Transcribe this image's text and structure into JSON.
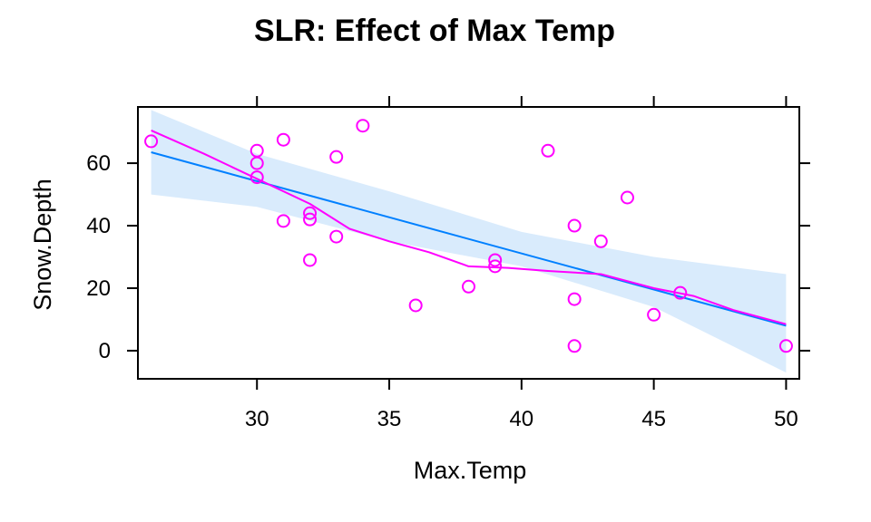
{
  "chart_data": {
    "type": "scatter",
    "title": "SLR: Effect of Max Temp",
    "xlabel": "Max.Temp",
    "ylabel": "Snow.Depth",
    "xlim": [
      25.5,
      50.5
    ],
    "ylim": [
      -9,
      78
    ],
    "x_ticks": [
      30,
      35,
      40,
      45,
      50
    ],
    "y_ticks": [
      0,
      20,
      40,
      60
    ],
    "grid": false,
    "colors": {
      "points": "#ff00ff",
      "fit_line": "#0080ff",
      "smooth_line": "#ff00ff",
      "band": "#d9ebfc"
    },
    "points": [
      {
        "x": 26,
        "y": 67
      },
      {
        "x": 30,
        "y": 64
      },
      {
        "x": 30,
        "y": 60
      },
      {
        "x": 30,
        "y": 55.5
      },
      {
        "x": 31,
        "y": 67.5
      },
      {
        "x": 31,
        "y": 41.5
      },
      {
        "x": 32,
        "y": 44
      },
      {
        "x": 32,
        "y": 42
      },
      {
        "x": 32,
        "y": 29
      },
      {
        "x": 33,
        "y": 62
      },
      {
        "x": 33,
        "y": 36.5
      },
      {
        "x": 34,
        "y": 72
      },
      {
        "x": 36,
        "y": 14.5
      },
      {
        "x": 38,
        "y": 20.5
      },
      {
        "x": 39,
        "y": 29
      },
      {
        "x": 39,
        "y": 27
      },
      {
        "x": 41,
        "y": 64
      },
      {
        "x": 42,
        "y": 40
      },
      {
        "x": 42,
        "y": 16.5
      },
      {
        "x": 42,
        "y": 1.5
      },
      {
        "x": 43,
        "y": 35
      },
      {
        "x": 44,
        "y": 49
      },
      {
        "x": 45,
        "y": 11.5
      },
      {
        "x": 46,
        "y": 18.5
      },
      {
        "x": 50,
        "y": 1.5
      }
    ],
    "fit_line": [
      {
        "x": 26,
        "y": 63.5
      },
      {
        "x": 50,
        "y": 8
      }
    ],
    "confidence_band": {
      "x": [
        26,
        30,
        35,
        40,
        45,
        50
      ],
      "upper": [
        77,
        63,
        51,
        38,
        30,
        24.5
      ],
      "lower": [
        50,
        46,
        35,
        27,
        14,
        -7
      ]
    },
    "smooth_line": [
      {
        "x": 26,
        "y": 70.5
      },
      {
        "x": 28,
        "y": 63
      },
      {
        "x": 30,
        "y": 55
      },
      {
        "x": 32,
        "y": 47
      },
      {
        "x": 33.5,
        "y": 39
      },
      {
        "x": 35,
        "y": 35
      },
      {
        "x": 36.5,
        "y": 31.5
      },
      {
        "x": 38,
        "y": 27
      },
      {
        "x": 39.5,
        "y": 26.5
      },
      {
        "x": 41,
        "y": 25.5
      },
      {
        "x": 43,
        "y": 24.5
      },
      {
        "x": 45,
        "y": 20
      },
      {
        "x": 46.5,
        "y": 17.5
      },
      {
        "x": 48,
        "y": 13
      },
      {
        "x": 50,
        "y": 8.5
      }
    ]
  }
}
